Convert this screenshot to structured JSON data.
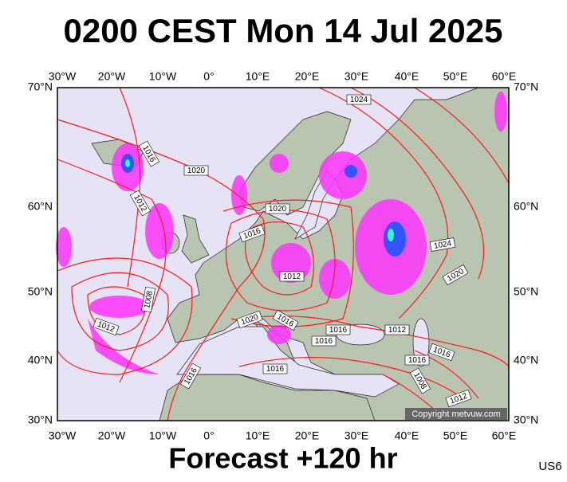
{
  "title": "0200 CEST Mon 14 Jul 2025",
  "footer": "Forecast +120 hr",
  "code": "US6",
  "copyright": "Copyright metvuw.com",
  "top_axis": [
    "30°W",
    "20°W",
    "10°W",
    "0°",
    "10°E",
    "20°E",
    "30°E",
    "40°E",
    "50°E",
    "60°E"
  ],
  "bottom_axis": [
    "30°W",
    "20°W",
    "10°W",
    "0°",
    "10°E",
    "20°E",
    "30°E",
    "40°E",
    "50°E",
    "60°E"
  ],
  "left_axis": [
    "70°N",
    "60°N",
    "50°N",
    "40°N",
    "30°N"
  ],
  "right_axis": [
    "70°N",
    "60°N",
    "50°N",
    "40°N",
    "30°N"
  ],
  "isobar_labels": [
    "1024",
    "1016",
    "1020",
    "1012",
    "1020",
    "1016",
    "1024",
    "1012",
    "1020",
    "1008",
    "1012",
    "1020",
    "1016",
    "1016",
    "1012",
    "1016",
    "1016",
    "1016",
    "1016",
    "1016",
    "1008",
    "1012"
  ]
}
